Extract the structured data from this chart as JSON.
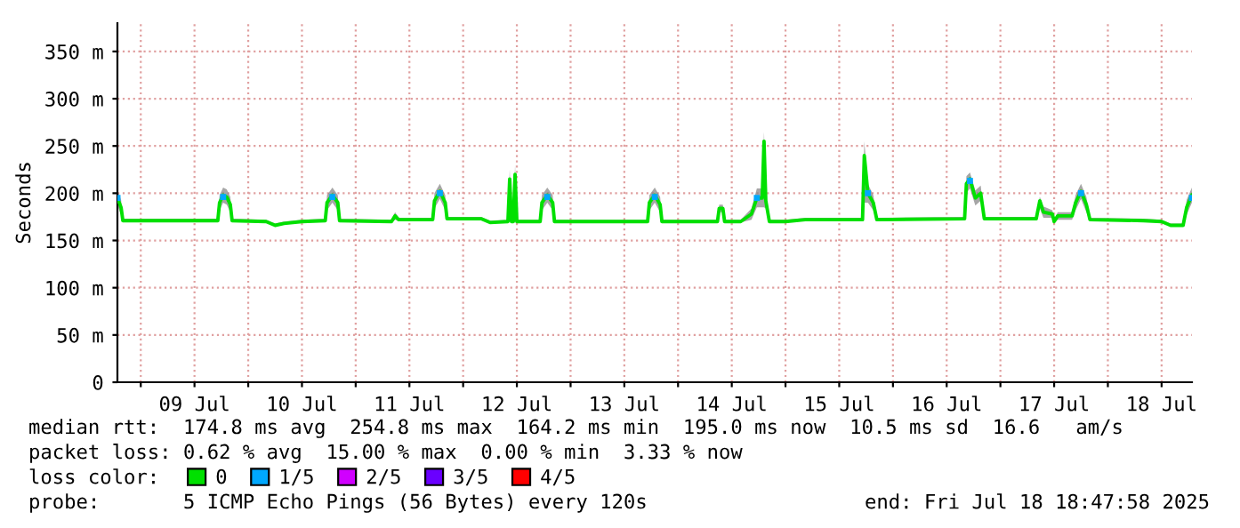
{
  "chart_data": {
    "type": "line",
    "ylabel": "Seconds",
    "legend_title": "loss color:",
    "legend": "bottom",
    "grid": true,
    "xlim": [
      "2025-07-08T18:47",
      "2025-07-18T18:47"
    ],
    "xticks": [
      {
        "value": "2025-07-09T00:00",
        "label": null
      },
      {
        "value": "2025-07-09T12:00",
        "label": "09 Jul"
      },
      {
        "value": "2025-07-10T00:00",
        "label": null
      },
      {
        "value": "2025-07-10T12:00",
        "label": "10 Jul"
      },
      {
        "value": "2025-07-11T00:00",
        "label": null
      },
      {
        "value": "2025-07-11T12:00",
        "label": "11 Jul"
      },
      {
        "value": "2025-07-12T00:00",
        "label": null
      },
      {
        "value": "2025-07-12T12:00",
        "label": "12 Jul"
      },
      {
        "value": "2025-07-13T00:00",
        "label": null
      },
      {
        "value": "2025-07-13T12:00",
        "label": "13 Jul"
      },
      {
        "value": "2025-07-14T00:00",
        "label": null
      },
      {
        "value": "2025-07-14T12:00",
        "label": "14 Jul"
      },
      {
        "value": "2025-07-15T00:00",
        "label": null
      },
      {
        "value": "2025-07-15T12:00",
        "label": "15 Jul"
      },
      {
        "value": "2025-07-16T00:00",
        "label": null
      },
      {
        "value": "2025-07-16T12:00",
        "label": "16 Jul"
      },
      {
        "value": "2025-07-17T00:00",
        "label": null
      },
      {
        "value": "2025-07-17T12:00",
        "label": "17 Jul"
      },
      {
        "value": "2025-07-18T00:00",
        "label": null
      },
      {
        "value": "2025-07-18T12:00",
        "label": "18 Jul"
      }
    ],
    "ylim": [
      0,
      380
    ],
    "yticks": [
      0,
      {
        "value": 50,
        "label": "50 m"
      },
      {
        "value": 100,
        "label": "100 m"
      },
      {
        "value": 150,
        "label": "150 m"
      },
      {
        "value": 200,
        "label": "200 m"
      },
      {
        "value": 250,
        "label": "250 m"
      },
      {
        "value": 300,
        "label": "300 m"
      },
      {
        "value": 350,
        "label": "350 m"
      }
    ],
    "annotations": [
      "median rtt:  174.8 ms avg  254.8 ms max  164.2 ms min  195.0 ms now  10.5 ms sd  16.6   am/s",
      "packet loss: 0.62 % avg  15.00 % max  0.00 % min  3.33 % now",
      "probe:       5 ICMP Echo Pings (56 Bytes) every 120s",
      "end: Fri Jul 18 18:47:58 2025"
    ],
    "series": [
      {
        "name": "0",
        "color": "#00e000",
        "x": [
          "2025-07-08T18:48",
          "2025-07-08T19:36",
          "2025-07-08T20:00",
          "2025-07-09T16:00",
          "2025-07-09T17:12",
          "2025-07-09T17:36",
          "2025-07-09T18:24",
          "2025-07-09T19:12",
          "2025-07-09T20:00",
          "2025-07-09T20:24",
          "2025-07-10T04:00",
          "2025-07-10T06:00",
          "2025-07-10T08:00",
          "2025-07-10T12:00",
          "2025-07-10T17:12",
          "2025-07-10T17:36",
          "2025-07-10T18:48",
          "2025-07-10T20:00",
          "2025-07-10T20:24",
          "2025-07-11T08:00",
          "2025-07-11T08:48",
          "2025-07-11T09:36",
          "2025-07-11T17:12",
          "2025-07-11T17:36",
          "2025-07-11T18:48",
          "2025-07-11T20:00",
          "2025-07-11T20:24",
          "2025-07-12T04:00",
          "2025-07-12T06:00",
          "2025-07-12T10:00",
          "2025-07-12T10:24",
          "2025-07-12T10:48",
          "2025-07-12T11:12",
          "2025-07-12T11:36",
          "2025-07-12T12:00",
          "2025-07-12T17:12",
          "2025-07-12T17:36",
          "2025-07-12T18:48",
          "2025-07-12T20:00",
          "2025-07-12T20:24",
          "2025-07-13T17:12",
          "2025-07-13T17:36",
          "2025-07-13T18:48",
          "2025-07-13T20:00",
          "2025-07-13T20:24",
          "2025-07-14T08:48",
          "2025-07-14T09:12",
          "2025-07-14T10:00",
          "2025-07-14T10:24",
          "2025-07-14T14:00",
          "2025-07-14T16:24",
          "2025-07-14T17:36",
          "2025-07-14T18:48",
          "2025-07-14T19:12",
          "2025-07-14T19:36",
          "2025-07-14T20:24",
          "2025-07-15T00:00",
          "2025-07-15T04:24",
          "2025-07-15T17:12",
          "2025-07-15T17:36",
          "2025-07-15T18:24",
          "2025-07-15T19:36",
          "2025-07-15T20:24",
          "2025-07-16T16:00",
          "2025-07-16T16:24",
          "2025-07-16T17:12",
          "2025-07-16T18:24",
          "2025-07-16T19:36",
          "2025-07-16T20:24",
          "2025-07-17T08:00",
          "2025-07-17T08:48",
          "2025-07-17T09:36",
          "2025-07-17T11:36",
          "2025-07-17T12:00",
          "2025-07-17T12:48",
          "2025-07-17T16:00",
          "2025-07-17T16:48",
          "2025-07-17T18:00",
          "2025-07-17T19:12",
          "2025-07-17T20:00",
          "2025-07-18T08:00",
          "2025-07-18T12:00",
          "2025-07-18T14:00",
          "2025-07-18T16:48",
          "2025-07-18T17:36",
          "2025-07-18T18:46"
        ],
        "values": [
          195,
          185,
          171,
          171,
          171,
          190,
          198,
          196,
          188,
          171,
          170,
          166,
          168,
          170,
          171,
          190,
          198,
          190,
          171,
          170,
          176,
          172,
          172,
          192,
          202,
          190,
          173,
          173,
          169,
          170,
          215,
          170,
          170,
          220,
          170,
          170,
          190,
          198,
          190,
          170,
          170,
          190,
          198,
          188,
          170,
          170,
          184,
          184,
          170,
          170,
          178,
          195,
          195,
          255,
          192,
          170,
          170,
          172,
          172,
          240,
          200,
          190,
          172,
          173,
          210,
          215,
          195,
          200,
          173,
          173,
          192,
          180,
          178,
          170,
          176,
          176,
          190,
          202,
          188,
          172,
          171,
          170,
          166,
          166,
          185,
          198
        ],
        "lower": [
          187,
          177,
          170,
          170,
          170,
          182,
          190,
          188,
          180,
          170,
          169,
          165,
          167,
          169,
          170,
          182,
          190,
          182,
          170,
          169,
          172,
          171,
          171,
          184,
          194,
          182,
          172,
          172,
          168,
          169,
          170,
          169,
          169,
          170,
          169,
          169,
          182,
          190,
          182,
          169,
          169,
          182,
          190,
          180,
          169,
          169,
          180,
          180,
          169,
          169,
          172,
          185,
          185,
          185,
          184,
          169,
          169,
          171,
          171,
          190,
          190,
          182,
          171,
          172,
          200,
          205,
          187,
          192,
          172,
          172,
          184,
          174,
          174,
          169,
          172,
          172,
          182,
          194,
          180,
          171,
          170,
          169,
          165,
          165,
          177,
          190
        ],
        "upper": [
          203,
          193,
          173,
          173,
          173,
          198,
          206,
          204,
          196,
          173,
          172,
          168,
          170,
          172,
          173,
          198,
          206,
          198,
          173,
          172,
          180,
          174,
          174,
          200,
          210,
          198,
          175,
          175,
          171,
          172,
          225,
          172,
          172,
          230,
          172,
          172,
          198,
          206,
          198,
          172,
          172,
          198,
          206,
          196,
          172,
          172,
          188,
          188,
          172,
          172,
          184,
          205,
          205,
          265,
          200,
          172,
          172,
          174,
          174,
          255,
          210,
          198,
          174,
          175,
          218,
          222,
          203,
          208,
          175,
          175,
          196,
          186,
          182,
          172,
          180,
          180,
          198,
          210,
          196,
          174,
          173,
          172,
          168,
          168,
          193,
          206
        ]
      },
      {
        "name": "1/5",
        "type": "scatter",
        "color": "#00a8ff",
        "marker": "square",
        "x": [
          "2025-07-08T18:48",
          "2025-07-09T18:24",
          "2025-07-10T18:48",
          "2025-07-11T18:48",
          "2025-07-12T18:48",
          "2025-07-13T18:48",
          "2025-07-14T17:36",
          "2025-07-15T18:24",
          "2025-07-16T17:12",
          "2025-07-17T18:00",
          "2025-07-18T18:46"
        ],
        "values": [
          195,
          196,
          196,
          200,
          196,
          196,
          195,
          200,
          213,
          200,
          195
        ]
      },
      {
        "name": "2/5",
        "type": "scatter",
        "color": "#d000ff"
      },
      {
        "name": "3/5",
        "type": "scatter",
        "color": "#6a00ff"
      },
      {
        "name": "4/5",
        "type": "scatter",
        "color": "#ff0000"
      }
    ]
  }
}
